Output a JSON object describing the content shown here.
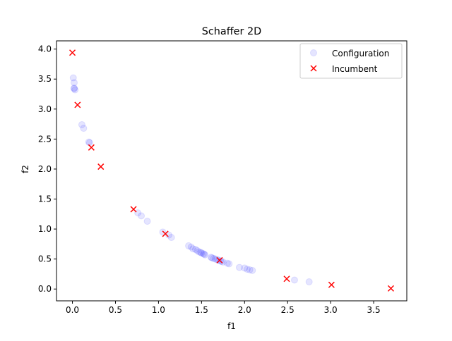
{
  "chart_data": {
    "type": "scatter",
    "title": "Schaffer 2D",
    "xlabel": "f1",
    "ylabel": "f2",
    "xlim": [
      -0.185,
      3.885
    ],
    "ylim": [
      -0.197,
      4.137
    ],
    "xticks": [
      0.0,
      0.5,
      1.0,
      1.5,
      2.0,
      2.5,
      3.0,
      3.5
    ],
    "xtick_labels": [
      "0.0",
      "0.5",
      "1.0",
      "1.5",
      "2.0",
      "2.5",
      "3.0",
      "3.5"
    ],
    "yticks": [
      0.0,
      0.5,
      1.0,
      1.5,
      2.0,
      2.5,
      3.0,
      3.5,
      4.0
    ],
    "ytick_labels": [
      "0.0",
      "0.5",
      "1.0",
      "1.5",
      "2.0",
      "2.5",
      "3.0",
      "3.5",
      "4.0"
    ],
    "grid": false,
    "legend_position": "top-right",
    "series": [
      {
        "name": "Configuration",
        "marker": "circle",
        "color": "#0000ff",
        "alpha": 0.1,
        "points": [
          [
            0.01,
            3.52
          ],
          [
            0.02,
            3.44
          ],
          [
            0.02,
            3.35
          ],
          [
            0.03,
            3.32
          ],
          [
            0.02,
            3.34
          ],
          [
            0.11,
            2.74
          ],
          [
            0.13,
            2.68
          ],
          [
            0.19,
            2.45
          ],
          [
            0.2,
            2.44
          ],
          [
            0.76,
            1.27
          ],
          [
            0.8,
            1.22
          ],
          [
            0.87,
            1.13
          ],
          [
            1.05,
            0.95
          ],
          [
            1.12,
            0.9
          ],
          [
            1.15,
            0.86
          ],
          [
            1.35,
            0.72
          ],
          [
            1.38,
            0.7
          ],
          [
            1.4,
            0.67
          ],
          [
            1.43,
            0.66
          ],
          [
            1.45,
            0.64
          ],
          [
            1.47,
            0.62
          ],
          [
            1.49,
            0.61
          ],
          [
            1.5,
            0.6
          ],
          [
            1.52,
            0.59
          ],
          [
            1.53,
            0.58
          ],
          [
            1.54,
            0.57
          ],
          [
            1.61,
            0.53
          ],
          [
            1.62,
            0.52
          ],
          [
            1.64,
            0.51
          ],
          [
            1.66,
            0.5
          ],
          [
            1.68,
            0.49
          ],
          [
            1.7,
            0.48
          ],
          [
            1.72,
            0.47
          ],
          [
            1.73,
            0.46
          ],
          [
            1.75,
            0.45
          ],
          [
            1.8,
            0.43
          ],
          [
            1.82,
            0.42
          ],
          [
            1.94,
            0.36
          ],
          [
            2.0,
            0.35
          ],
          [
            2.03,
            0.33
          ],
          [
            2.06,
            0.32
          ],
          [
            2.09,
            0.31
          ],
          [
            2.58,
            0.15
          ],
          [
            2.75,
            0.12
          ]
        ]
      },
      {
        "name": "Incumbent",
        "marker": "x",
        "color": "#ff0000",
        "points": [
          [
            0.0,
            3.94
          ],
          [
            0.06,
            3.07
          ],
          [
            0.22,
            2.36
          ],
          [
            0.33,
            2.04
          ],
          [
            0.71,
            1.33
          ],
          [
            1.08,
            0.92
          ],
          [
            1.71,
            0.48
          ],
          [
            2.49,
            0.17
          ],
          [
            3.01,
            0.07
          ],
          [
            3.7,
            0.01
          ]
        ]
      }
    ]
  }
}
